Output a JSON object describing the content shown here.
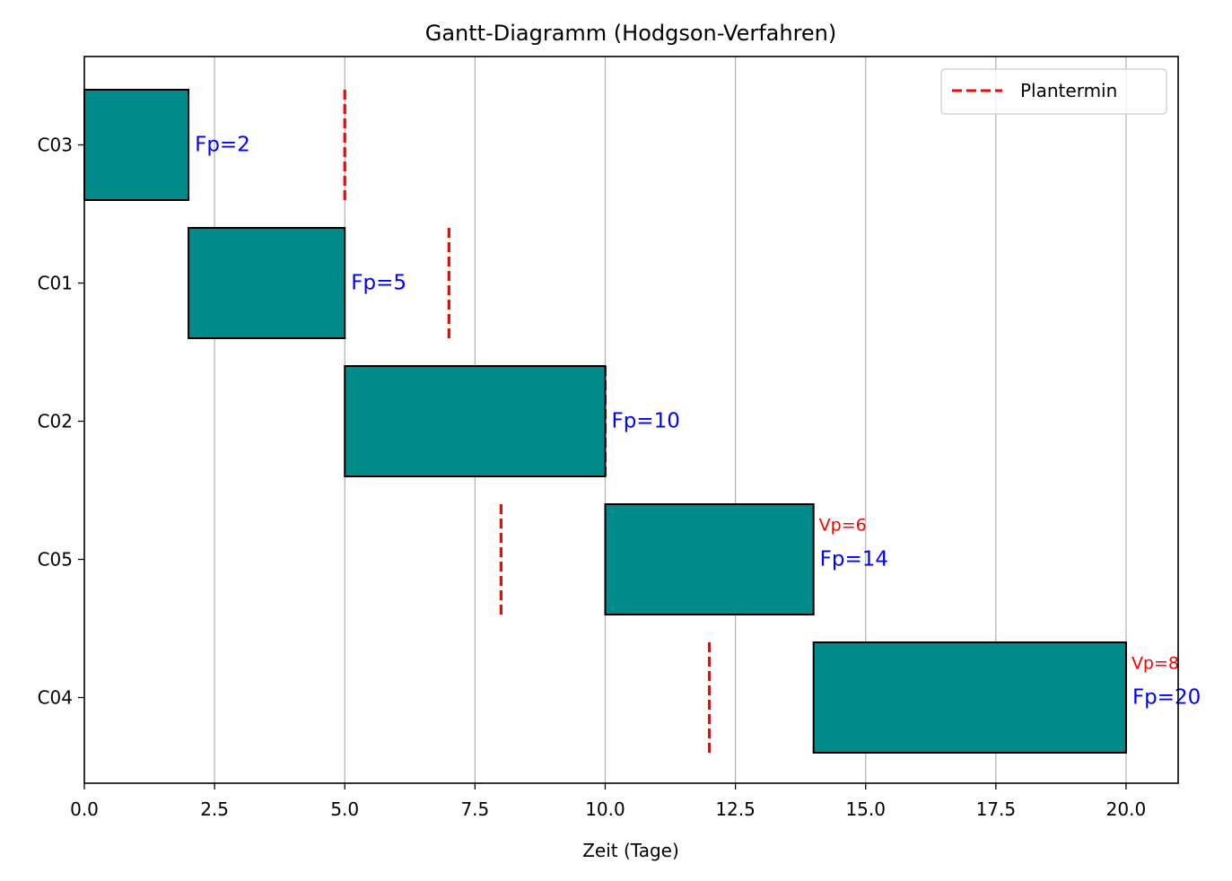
{
  "chart_data": {
    "type": "gantt",
    "title": "Gantt-Diagramm (Hodgson-Verfahren)",
    "xlabel": "Zeit (Tage)",
    "ylabel": "",
    "xlim": [
      0,
      21
    ],
    "x_ticks": [
      0,
      2.5,
      5,
      7.5,
      10,
      12.5,
      15,
      17.5,
      20
    ],
    "x_tick_labels": [
      "0.0",
      "2.5",
      "5.0",
      "7.5",
      "10.0",
      "12.5",
      "15.0",
      "17.5",
      "20.0"
    ],
    "grid": "x",
    "legend": {
      "entries": [
        "Plantermin"
      ],
      "placement": "top-right"
    },
    "colors": {
      "bar": "#008b8b",
      "deadline": "#ff0000",
      "finish_label": "#0000ff",
      "delay_label": "#ff0000",
      "grid": "#b0b0b0"
    },
    "tasks": [
      {
        "name": "C03",
        "start": 0,
        "end": 2,
        "deadline": 5,
        "finish_label": "Fp=2",
        "delay_label": ""
      },
      {
        "name": "C01",
        "start": 2,
        "end": 5,
        "deadline": 7,
        "finish_label": "Fp=5",
        "delay_label": ""
      },
      {
        "name": "C02",
        "start": 5,
        "end": 10,
        "deadline": 10,
        "finish_label": "Fp=10",
        "delay_label": ""
      },
      {
        "name": "C05",
        "start": 10,
        "end": 14,
        "deadline": 8,
        "finish_label": "Fp=14",
        "delay_label": "Vp=6"
      },
      {
        "name": "C04",
        "start": 14,
        "end": 20,
        "deadline": 12,
        "finish_label": "Fp=20",
        "delay_label": "Vp=8"
      }
    ]
  }
}
